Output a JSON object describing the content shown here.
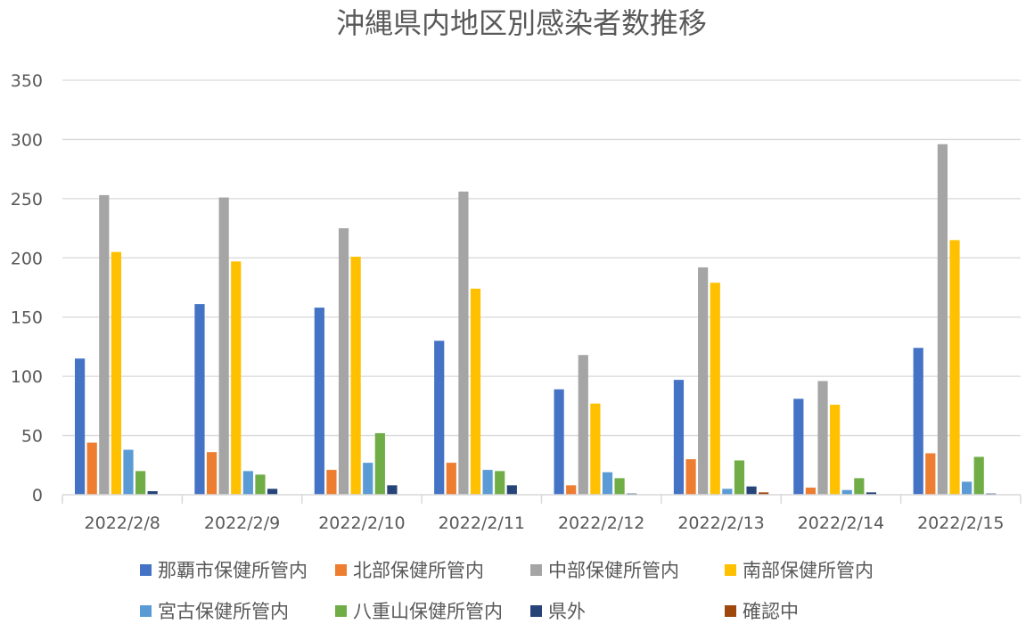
{
  "chart_data": {
    "type": "bar",
    "title": "沖縄県内地区別感染者数推移",
    "xlabel": "",
    "ylabel": "",
    "ylim": [
      0,
      350
    ],
    "yticks": [
      0,
      50,
      100,
      150,
      200,
      250,
      300,
      350
    ],
    "grid": true,
    "legend_position": "bottom",
    "categories": [
      "2022/2/8",
      "2022/2/9",
      "2022/2/10",
      "2022/2/11",
      "2022/2/12",
      "2022/2/13",
      "2022/2/14",
      "2022/2/15"
    ],
    "series": [
      {
        "name": "那覇市保健所管内",
        "color": "#4472C4",
        "values": [
          115,
          161,
          158,
          130,
          89,
          97,
          81,
          124
        ]
      },
      {
        "name": "北部保健所管内",
        "color": "#ED7D31",
        "values": [
          44,
          36,
          21,
          27,
          8,
          30,
          6,
          35
        ]
      },
      {
        "name": "中部保健所管内",
        "color": "#A5A5A5",
        "values": [
          253,
          251,
          225,
          256,
          118,
          192,
          96,
          296
        ]
      },
      {
        "name": "南部保健所管内",
        "color": "#FFC000",
        "values": [
          205,
          197,
          201,
          174,
          77,
          179,
          76,
          215
        ]
      },
      {
        "name": "宮古保健所管内",
        "color": "#5B9BD5",
        "values": [
          38,
          20,
          27,
          21,
          19,
          5,
          4,
          11
        ]
      },
      {
        "name": "八重山保健所管内",
        "color": "#70AD47",
        "values": [
          20,
          17,
          52,
          20,
          14,
          29,
          14,
          32
        ]
      },
      {
        "name": "県外",
        "color": "#264478",
        "values": [
          3,
          5,
          8,
          8,
          1,
          7,
          2,
          1
        ]
      },
      {
        "name": "確認中",
        "color": "#9E480E",
        "values": [
          0,
          0,
          0,
          0,
          0,
          2,
          0,
          0
        ]
      }
    ]
  }
}
